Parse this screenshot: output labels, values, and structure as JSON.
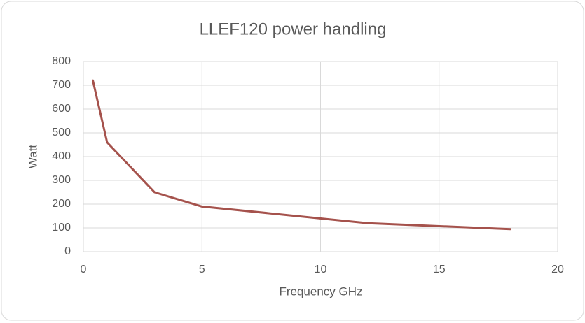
{
  "chart_data": {
    "type": "line",
    "title": "LLEF120 power handling",
    "x_label": "Frequency GHz",
    "y_label": "Watt",
    "x": [
      0.4,
      1,
      3,
      5,
      12,
      18
    ],
    "series": [
      {
        "name": "Watt",
        "color": "#a5524c",
        "values": [
          720,
          460,
          250,
          190,
          120,
          95
        ]
      }
    ],
    "xlim": [
      0,
      20
    ],
    "xticks": [
      0,
      5,
      10,
      15,
      20
    ],
    "ylim": [
      0,
      800
    ],
    "yticks": [
      0,
      100,
      200,
      300,
      400,
      500,
      600,
      700,
      800
    ],
    "grid": true
  }
}
